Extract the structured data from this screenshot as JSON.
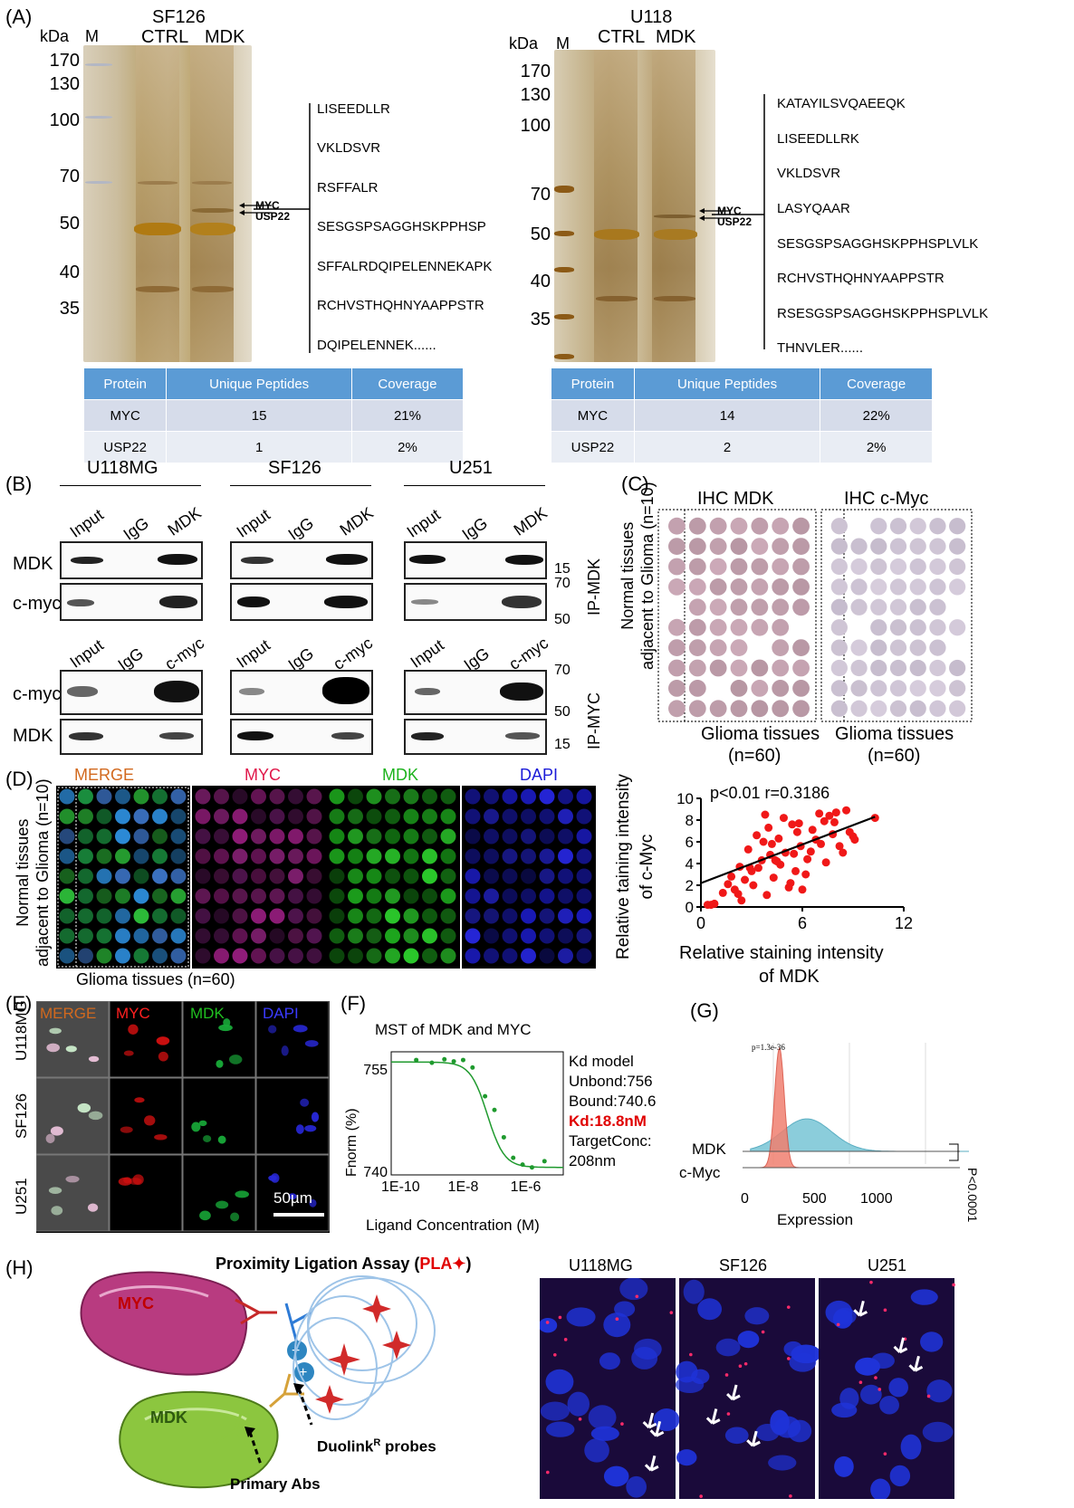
{
  "panels": {
    "A": "(A)",
    "B": "(B)",
    "C": "(C)",
    "D": "(D)",
    "E": "(E)",
    "F": "(F)",
    "G": "(G)",
    "H": "(H)"
  },
  "panelA": {
    "left": {
      "title": "SF126",
      "kda": "kDa",
      "m": "M",
      "ctrl": "CTRL",
      "mdk": "MDK",
      "markers": [
        "170",
        "130",
        "100",
        "70",
        "50",
        "40",
        "35"
      ],
      "arrows": [
        "MYC",
        "USP22"
      ],
      "peptides": [
        "LISEEDLLR",
        "VKLDSVR",
        "RSFFALR",
        "SESGSPSAGGHSKPPHSP",
        "SFFALRDQIPELENNEKAPK",
        "RCHVSTHQHNYAAPPSTR",
        "DQIPELENNEK......"
      ],
      "table": {
        "headers": [
          "Protein",
          "Unique Peptides",
          "Coverage"
        ],
        "rows": [
          [
            "MYC",
            "15",
            "21%"
          ],
          [
            "USP22",
            "1",
            "2%"
          ]
        ]
      }
    },
    "right": {
      "title": "U118",
      "kda": "kDa",
      "m": "M",
      "ctrl": "CTRL",
      "mdk": "MDK",
      "markers": [
        "170",
        "130",
        "100",
        "70",
        "50",
        "40",
        "35"
      ],
      "arrows": [
        "MYC",
        "USP22"
      ],
      "peptides": [
        "KATAYILSVQAEEQK",
        "LISEEDLLRK",
        "VKLDSVR",
        "LASYQAAR",
        "SESGSPSAGGHSKPPHSPLVLK",
        "RCHVSTHQHNYAAPPSTR",
        "RSESGSPSAGGHSKPPHSPLVLK",
        "THNVLER......"
      ],
      "table": {
        "headers": [
          "Protein",
          "Unique Peptides",
          "Coverage"
        ],
        "rows": [
          [
            "MYC",
            "14",
            "22%"
          ],
          [
            "USP22",
            "2",
            "2%"
          ]
        ]
      }
    }
  },
  "panelB": {
    "cells": [
      "U118MG",
      "SF126",
      "U251"
    ],
    "top_lanes": [
      "Input",
      "IgG",
      "MDK"
    ],
    "bottom_lanes": [
      "Input",
      "IgG",
      "c-myc"
    ],
    "row_labels_top": [
      "MDK",
      "c-myc"
    ],
    "row_labels_bottom": [
      "c-myc",
      "MDK"
    ],
    "mw_top": [
      "15",
      "70",
      "50"
    ],
    "mw_bottom": [
      "70",
      "50",
      "15"
    ],
    "ip_top": "IP-MDK",
    "ip_bottom": "IP-MYC"
  },
  "panelC": {
    "ihc1": "IHC MDK",
    "ihc2": "IHC c-Myc",
    "side": "Normal tissues adjacent to Glioma (n=10)",
    "side1": "Normal tissues",
    "side2": "adjacent to Glioma (n=10)",
    "glioma1": "Glioma tissues",
    "n1": "(n=60)",
    "glioma2": "Glioma tissues",
    "n2": "(n=60)"
  },
  "panelD": {
    "channels": [
      "MERGE",
      "MYC",
      "MDK",
      "DAPI"
    ],
    "channel_colors": [
      "#d2691e",
      "#e0184a",
      "#1db31d",
      "#1b1bd8"
    ],
    "side1": "Normal tissues",
    "side2": "adjacent to Glioma (n=10)",
    "bottom": "Glioma tissues (n=60)"
  },
  "scatter": {
    "stats": "p<0.01  r=0.3186",
    "ylabel1": "Relative taining intensity",
    "ylabel2": "of c-Myc",
    "xlabel1": "Relative staining intensity",
    "xlabel2": "of MDK",
    "chart_data": {
      "type": "scatter",
      "xlim": [
        0,
        12
      ],
      "ylim": [
        0,
        10
      ],
      "xticks": [
        "0",
        "6",
        "12"
      ],
      "yticks": [
        "0",
        "2",
        "4",
        "6",
        "8",
        "10"
      ],
      "fit": {
        "x": [
          0,
          10.3
        ],
        "y": [
          2.2,
          8.3
        ]
      },
      "points": [
        [
          0.4,
          0.2
        ],
        [
          0.6,
          0.2
        ],
        [
          0.8,
          0.3
        ],
        [
          1.3,
          1.3
        ],
        [
          1.6,
          2.1
        ],
        [
          1.8,
          2.8
        ],
        [
          2.0,
          1.6
        ],
        [
          2.2,
          1.2
        ],
        [
          2.3,
          3.7
        ],
        [
          2.4,
          0.6
        ],
        [
          2.6,
          2.5
        ],
        [
          2.8,
          5.3
        ],
        [
          3.0,
          3.3
        ],
        [
          3.1,
          2.0
        ],
        [
          3.3,
          6.6
        ],
        [
          3.4,
          3.6
        ],
        [
          3.6,
          4.3
        ],
        [
          3.7,
          6.0
        ],
        [
          3.8,
          8.5
        ],
        [
          3.9,
          1.1
        ],
        [
          4.0,
          7.3
        ],
        [
          4.1,
          4.8
        ],
        [
          4.2,
          5.8
        ],
        [
          4.3,
          2.7
        ],
        [
          4.5,
          4.2
        ],
        [
          4.6,
          6.3
        ],
        [
          4.7,
          3.9
        ],
        [
          4.9,
          8.2
        ],
        [
          5.0,
          5.0
        ],
        [
          5.2,
          1.8
        ],
        [
          5.3,
          2.2
        ],
        [
          5.4,
          7.6
        ],
        [
          5.5,
          4.9
        ],
        [
          5.6,
          3.3
        ],
        [
          5.7,
          6.9
        ],
        [
          5.8,
          7.7
        ],
        [
          5.9,
          5.6
        ],
        [
          6.0,
          1.6
        ],
        [
          6.2,
          3.0
        ],
        [
          6.3,
          4.4
        ],
        [
          6.5,
          5.1
        ],
        [
          6.6,
          7.1
        ],
        [
          6.8,
          6.2
        ],
        [
          7.0,
          8.6
        ],
        [
          7.1,
          5.8
        ],
        [
          7.3,
          7.9
        ],
        [
          7.4,
          4.1
        ],
        [
          7.6,
          8.4
        ],
        [
          7.8,
          6.7
        ],
        [
          7.9,
          7.8
        ],
        [
          8.0,
          8.7
        ],
        [
          8.2,
          5.6
        ],
        [
          8.4,
          5.0
        ],
        [
          8.6,
          8.9
        ],
        [
          8.8,
          6.9
        ],
        [
          9.0,
          6.5
        ],
        [
          9.1,
          6.2
        ],
        [
          10.3,
          8.2
        ],
        [
          2.9,
          3.6
        ],
        [
          4.4,
          4.3
        ]
      ]
    }
  },
  "panelE": {
    "channels": [
      "MERGE",
      "MYC",
      "MDK",
      "DAPI"
    ],
    "rows": [
      "U118MG",
      "SF126",
      "U251"
    ],
    "scale": "50µm"
  },
  "panelF": {
    "title": "MST of MDK and MYC",
    "ylabel": "Fnorm (%)",
    "xlabel": "Ligand Concentration (M)",
    "yticks": [
      "755",
      "740"
    ],
    "xticks": [
      "1E-10",
      "1E-8",
      "1E-6"
    ],
    "info": [
      "Kd model",
      "Unbond:756",
      "Bound:740.6",
      "Kd:18.8nM",
      "TargetConc:",
      "208nm"
    ],
    "highlight_color": "#e00000",
    "chart_data": {
      "type": "scatter",
      "title": "MST of MDK and MYC",
      "xlabel": "Ligand Concentration (M)",
      "ylabel": "Fnorm (%)",
      "x_log10": [
        -9.5,
        -9.0,
        -8.6,
        -8.3,
        -8.0,
        -7.7,
        -7.3,
        -7.0,
        -6.7,
        -6.4,
        -6.1,
        -5.8,
        -5.4
      ],
      "y": [
        756.3,
        755.9,
        756.4,
        756.1,
        756.3,
        755.2,
        751.0,
        749.0,
        745.0,
        742.0,
        741.0,
        740.6,
        741.5
      ],
      "fit": {
        "unbound": 756,
        "bound": 740.6,
        "kd": "18.8nM"
      }
    }
  },
  "panelG": {
    "pval": "p=1.3e-36",
    "xlabel": "Expression",
    "xticks": [
      "0",
      "500",
      "1000"
    ],
    "labels": [
      "MDK",
      "c-Myc"
    ],
    "sig": "P<0.0001",
    "colors": {
      "mdk": "#7fc8d8",
      "cmyc": "#f08070"
    }
  },
  "panelH": {
    "title": "Proximity Ligation Assay (",
    "pla": "PLA",
    "close": ")",
    "myc": "MYC",
    "mdk": "MDK",
    "primary": "Primary Abs",
    "duolink": "Duolink",
    "sup": "R",
    "probes": " probes",
    "cells": [
      "U118MG",
      "SF126",
      "U251"
    ]
  }
}
